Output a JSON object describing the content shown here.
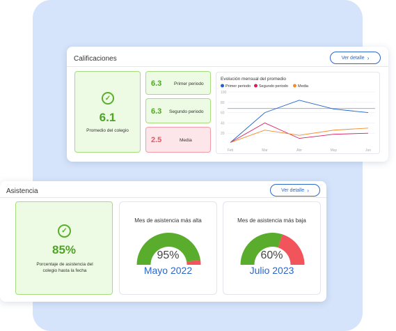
{
  "colors": {
    "accent": "#2b66c9",
    "green": "#5aad2c",
    "red": "#f2545b",
    "orange": "#f28c28",
    "crimson": "#d81b60",
    "background": "#d5e4fb"
  },
  "calificaciones": {
    "title": "Calificaciones",
    "detail_label": "Ver detalle",
    "icon": "check-circle-icon",
    "average_value": "6.1",
    "average_label": "Promedio del colegio",
    "periods": [
      {
        "value": "6.3",
        "label": "Primer periodo",
        "status": "good"
      },
      {
        "value": "6.3",
        "label": "Segundo periodo",
        "status": "good"
      },
      {
        "value": "2.5",
        "label": "Media",
        "status": "bad"
      }
    ]
  },
  "chart_data": {
    "type": "line",
    "title": "Evolución mensual del promedio",
    "categories": [
      "Feb",
      "Mar",
      "Abr",
      "May",
      "Jun"
    ],
    "ylim": [
      0,
      100
    ],
    "yticks": [
      "100",
      "80",
      "60",
      "40",
      "20"
    ],
    "grid": true,
    "legend_placement": "top-left",
    "reference_line": 68,
    "series": [
      {
        "name": "Primer periodo",
        "color": "#1f62c9",
        "values": [
          2,
          60,
          84,
          67,
          60
        ]
      },
      {
        "name": "Segundo periodo",
        "color": "#d81b60",
        "values": [
          2,
          40,
          10,
          18,
          20
        ]
      },
      {
        "name": "Media",
        "color": "#f28c28",
        "values": [
          2,
          26,
          16,
          26,
          30
        ]
      }
    ]
  },
  "asistencia": {
    "title": "Asistencia",
    "detail_label": "Ver detalle",
    "icon": "check-circle-icon",
    "percentage": "85%",
    "percentage_label": "Porcentaje de asistencia del colegio hasta la fecha",
    "gauges": [
      {
        "title": "Mes de asistencia más alta",
        "value": 95,
        "value_label": "95%",
        "month": "Mayo 2022"
      },
      {
        "title": "Mes de asistencia más baja",
        "value": 60,
        "value_label": "60%",
        "month": "Julio 2023"
      }
    ]
  }
}
